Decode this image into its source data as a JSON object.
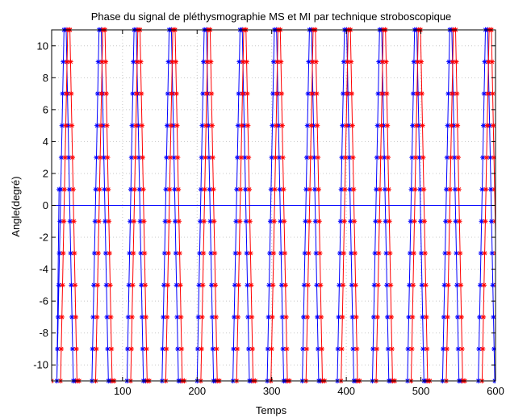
{
  "chart_data": {
    "type": "line",
    "title": "Phase du signal de pléthysmographie MS et MI par technique stroboscopique",
    "xlabel": "Temps",
    "ylabel": "Angle(degré)",
    "xlim": [
      5,
      600
    ],
    "ylim": [
      -11,
      11
    ],
    "xticks": [
      100,
      200,
      300,
      400,
      500,
      600
    ],
    "yticks": [
      -10,
      -8,
      -6,
      -4,
      -2,
      0,
      2,
      4,
      6,
      8,
      10
    ],
    "grid": true,
    "legend": "none",
    "marker": "*",
    "series": [
      {
        "color": "#0000ff",
        "levels": [
          -11,
          -9,
          -7,
          -5,
          -3,
          -1,
          1,
          3,
          5,
          7,
          9,
          11
        ],
        "peaks": [
          23,
          70,
          117,
          164,
          211,
          259,
          305,
          352,
          399,
          446,
          493,
          540,
          588
        ],
        "period": 47,
        "half_width": 11,
        "start": [
          15,
          1
        ]
      },
      {
        "color": "#ff0000",
        "levels": [
          -11,
          -9,
          -7,
          -5,
          -3,
          -1,
          1,
          3,
          5,
          7,
          9,
          11
        ],
        "peaks": [
          28,
          75,
          122,
          169,
          216,
          264,
          310,
          357,
          404,
          451,
          498,
          545,
          593
        ],
        "period": 47,
        "half_width": 11,
        "start": [
          5,
          -11
        ]
      }
    ],
    "hline": 0
  }
}
